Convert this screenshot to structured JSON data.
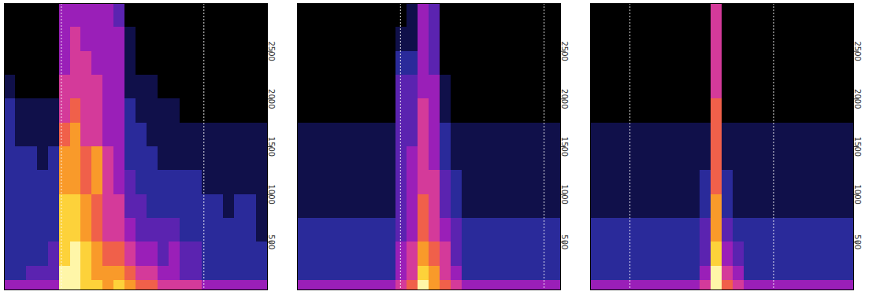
{
  "chart_data": [
    {
      "type": "heatmap",
      "tick_labels": "y",
      "xlim": [
        0,
        24
      ],
      "ylim": [
        0,
        3000
      ],
      "yticks": [
        500,
        1000,
        1500,
        2000,
        2500
      ],
      "x_bins": [
        0,
        1,
        2,
        3,
        4,
        5,
        6,
        7,
        8,
        9,
        10,
        11,
        12,
        13,
        14,
        15,
        16,
        17,
        18,
        19,
        20,
        21,
        22,
        23,
        24
      ],
      "y_bins": [
        0,
        100,
        250,
        500,
        750,
        1000,
        1250,
        1500,
        1750,
        2000,
        2250,
        2500,
        2750,
        3000
      ],
      "zlim": [
        0,
        9
      ],
      "vlines": [
        5.2,
        18.2
      ],
      "z": [
        [
          4,
          4,
          4,
          4,
          4,
          9,
          9,
          8,
          8,
          7,
          8,
          7,
          6,
          6,
          5,
          5,
          5,
          5,
          4,
          4,
          4,
          4,
          4,
          4
        ],
        [
          2,
          2,
          3,
          3,
          3,
          9,
          9,
          8,
          7,
          7,
          7,
          6,
          5,
          5,
          4,
          4,
          3,
          3,
          2,
          2,
          2,
          2,
          2,
          2
        ],
        [
          2,
          2,
          2,
          2,
          3,
          8,
          9,
          8,
          7,
          6,
          6,
          5,
          4,
          4,
          3,
          4,
          3,
          3,
          2,
          2,
          2,
          2,
          2,
          2
        ],
        [
          2,
          2,
          2,
          2,
          2,
          8,
          8,
          7,
          6,
          5,
          5,
          4,
          3,
          3,
          3,
          3,
          2,
          2,
          2,
          2,
          2,
          2,
          2,
          1
        ],
        [
          2,
          2,
          2,
          2,
          2,
          8,
          8,
          7,
          6,
          5,
          5,
          3,
          3,
          2,
          2,
          2,
          2,
          2,
          2,
          2,
          1,
          2,
          2,
          1
        ],
        [
          2,
          2,
          2,
          2,
          2,
          7,
          7,
          6,
          7,
          5,
          4,
          3,
          2,
          2,
          2,
          2,
          2,
          2,
          1,
          1,
          1,
          1,
          1,
          1
        ],
        [
          2,
          2,
          2,
          1,
          2,
          7,
          7,
          6,
          7,
          5,
          4,
          2,
          2,
          2,
          1,
          1,
          1,
          1,
          1,
          1,
          1,
          1,
          1,
          1
        ],
        [
          2,
          1,
          1,
          1,
          1,
          6,
          7,
          5,
          5,
          4,
          4,
          2,
          2,
          1,
          1,
          1,
          1,
          1,
          1,
          1,
          1,
          1,
          1,
          1
        ],
        [
          2,
          1,
          1,
          1,
          1,
          5,
          6,
          5,
          5,
          4,
          4,
          2,
          1,
          1,
          1,
          1,
          0,
          0,
          0,
          0,
          0,
          0,
          0,
          0
        ],
        [
          1,
          0,
          0,
          0,
          0,
          5,
          5,
          5,
          5,
          4,
          4,
          1,
          1,
          1,
          0,
          0,
          0,
          0,
          0,
          0,
          0,
          0,
          0,
          0
        ],
        [
          0,
          0,
          0,
          0,
          0,
          4,
          5,
          5,
          4,
          4,
          4,
          1,
          0,
          0,
          0,
          0,
          0,
          0,
          0,
          0,
          0,
          0,
          0,
          0
        ],
        [
          0,
          0,
          0,
          0,
          0,
          4,
          5,
          4,
          4,
          4,
          4,
          1,
          0,
          0,
          0,
          0,
          0,
          0,
          0,
          0,
          0,
          0,
          0,
          0
        ],
        [
          0,
          0,
          0,
          0,
          0,
          4,
          4,
          4,
          4,
          4,
          3,
          0,
          0,
          0,
          0,
          0,
          0,
          0,
          0,
          0,
          0,
          0,
          0,
          0
        ]
      ]
    },
    {
      "type": "heatmap",
      "tick_labels": "y",
      "xlim": [
        0,
        24
      ],
      "ylim": [
        0,
        3000
      ],
      "yticks": [
        500,
        1000,
        1500,
        2000,
        2500
      ],
      "x_bins": [
        0,
        1,
        2,
        3,
        4,
        5,
        6,
        7,
        8,
        9,
        10,
        11,
        12,
        13,
        14,
        15,
        16,
        17,
        18,
        19,
        20,
        21,
        22,
        23,
        24
      ],
      "y_bins": [
        0,
        100,
        250,
        500,
        750,
        1000,
        1250,
        1500,
        1750,
        2000,
        2250,
        2500,
        2750,
        3000
      ],
      "zlim": [
        0,
        9
      ],
      "vlines": [
        9.4,
        22.5
      ],
      "z": [
        [
          4,
          4,
          4,
          4,
          4,
          4,
          4,
          4,
          4,
          5,
          6,
          9,
          7,
          6,
          5,
          4,
          4,
          4,
          4,
          4,
          4,
          4,
          4,
          4
        ],
        [
          2,
          2,
          2,
          2,
          2,
          2,
          2,
          2,
          2,
          4,
          5,
          8,
          7,
          5,
          4,
          2,
          2,
          2,
          2,
          2,
          2,
          2,
          2,
          2
        ],
        [
          2,
          2,
          2,
          2,
          2,
          2,
          2,
          2,
          2,
          4,
          5,
          7,
          6,
          5,
          3,
          2,
          2,
          2,
          2,
          2,
          2,
          2,
          2,
          2
        ],
        [
          2,
          2,
          2,
          2,
          2,
          2,
          2,
          2,
          2,
          3,
          4,
          6,
          5,
          4,
          3,
          2,
          2,
          2,
          2,
          2,
          2,
          2,
          2,
          2
        ],
        [
          1,
          1,
          1,
          1,
          1,
          1,
          1,
          1,
          1,
          3,
          4,
          6,
          5,
          3,
          2,
          1,
          1,
          1,
          1,
          1,
          1,
          1,
          1,
          1
        ],
        [
          1,
          1,
          1,
          1,
          1,
          1,
          1,
          1,
          1,
          3,
          4,
          5,
          5,
          3,
          2,
          1,
          1,
          1,
          1,
          1,
          1,
          1,
          1,
          1
        ],
        [
          1,
          1,
          1,
          1,
          1,
          1,
          1,
          1,
          1,
          3,
          4,
          5,
          4,
          2,
          1,
          1,
          1,
          1,
          1,
          1,
          1,
          1,
          1,
          1
        ],
        [
          1,
          1,
          1,
          1,
          1,
          1,
          1,
          1,
          1,
          3,
          3,
          5,
          4,
          2,
          1,
          1,
          1,
          1,
          1,
          1,
          1,
          1,
          1,
          1
        ],
        [
          0,
          0,
          0,
          0,
          0,
          0,
          0,
          0,
          0,
          3,
          3,
          5,
          4,
          1,
          0,
          0,
          0,
          0,
          0,
          0,
          0,
          0,
          0,
          0
        ],
        [
          0,
          0,
          0,
          0,
          0,
          0,
          0,
          0,
          0,
          3,
          3,
          4,
          4,
          1,
          0,
          0,
          0,
          0,
          0,
          0,
          0,
          0,
          0,
          0
        ],
        [
          0,
          0,
          0,
          0,
          0,
          0,
          0,
          0,
          0,
          2,
          2,
          4,
          3,
          0,
          0,
          0,
          0,
          0,
          0,
          0,
          0,
          0,
          0,
          0
        ],
        [
          0,
          0,
          0,
          0,
          0,
          0,
          0,
          0,
          0,
          1,
          1,
          4,
          3,
          0,
          0,
          0,
          0,
          0,
          0,
          0,
          0,
          0,
          0,
          0
        ],
        [
          0,
          0,
          0,
          0,
          0,
          0,
          0,
          0,
          0,
          0,
          1,
          4,
          3,
          0,
          0,
          0,
          0,
          0,
          0,
          0,
          0,
          0,
          0,
          0
        ]
      ]
    },
    {
      "type": "heatmap",
      "tick_labels": "y",
      "xlim": [
        0,
        24
      ],
      "ylim": [
        0,
        3000
      ],
      "yticks": [
        500,
        1000,
        1500,
        2000,
        2500
      ],
      "x_bins": [
        0,
        1,
        2,
        3,
        4,
        5,
        6,
        7,
        8,
        9,
        10,
        11,
        12,
        13,
        14,
        15,
        16,
        17,
        18,
        19,
        20,
        21,
        22,
        23,
        24
      ],
      "y_bins": [
        0,
        100,
        250,
        500,
        750,
        1000,
        1250,
        1500,
        1750,
        2000,
        2250,
        2500,
        2750,
        3000
      ],
      "zlim": [
        0,
        9
      ],
      "vlines": [
        3.6,
        16.7
      ],
      "z": [
        [
          4,
          4,
          4,
          4,
          4,
          4,
          4,
          4,
          4,
          4,
          5,
          9,
          6,
          5,
          4,
          4,
          4,
          4,
          4,
          4,
          4,
          4,
          4,
          4
        ],
        [
          2,
          2,
          2,
          2,
          2,
          2,
          2,
          2,
          2,
          2,
          4,
          9,
          5,
          4,
          2,
          2,
          2,
          2,
          2,
          2,
          2,
          2,
          2,
          2
        ],
        [
          2,
          2,
          2,
          2,
          2,
          2,
          2,
          2,
          2,
          2,
          3,
          8,
          4,
          3,
          2,
          2,
          2,
          2,
          2,
          2,
          2,
          2,
          2,
          2
        ],
        [
          2,
          2,
          2,
          2,
          2,
          2,
          2,
          2,
          2,
          2,
          3,
          7,
          3,
          2,
          2,
          2,
          2,
          2,
          2,
          2,
          2,
          2,
          2,
          2
        ],
        [
          1,
          1,
          1,
          1,
          1,
          1,
          1,
          1,
          1,
          1,
          2,
          7,
          2,
          1,
          1,
          1,
          1,
          1,
          1,
          1,
          1,
          1,
          1,
          1
        ],
        [
          1,
          1,
          1,
          1,
          1,
          1,
          1,
          1,
          1,
          1,
          2,
          6,
          2,
          1,
          1,
          1,
          1,
          1,
          1,
          1,
          1,
          1,
          1,
          1
        ],
        [
          1,
          1,
          1,
          1,
          1,
          1,
          1,
          1,
          1,
          1,
          1,
          6,
          1,
          1,
          1,
          1,
          1,
          1,
          1,
          1,
          1,
          1,
          1,
          1
        ],
        [
          1,
          1,
          1,
          1,
          1,
          1,
          1,
          1,
          1,
          1,
          1,
          6,
          1,
          1,
          1,
          1,
          1,
          1,
          1,
          1,
          1,
          1,
          1,
          1
        ],
        [
          0,
          0,
          0,
          0,
          0,
          0,
          0,
          0,
          0,
          0,
          0,
          6,
          0,
          0,
          0,
          0,
          0,
          0,
          0,
          0,
          0,
          0,
          0,
          0
        ],
        [
          0,
          0,
          0,
          0,
          0,
          0,
          0,
          0,
          0,
          0,
          0,
          5,
          0,
          0,
          0,
          0,
          0,
          0,
          0,
          0,
          0,
          0,
          0,
          0
        ],
        [
          0,
          0,
          0,
          0,
          0,
          0,
          0,
          0,
          0,
          0,
          0,
          5,
          0,
          0,
          0,
          0,
          0,
          0,
          0,
          0,
          0,
          0,
          0,
          0
        ],
        [
          0,
          0,
          0,
          0,
          0,
          0,
          0,
          0,
          0,
          0,
          0,
          5,
          0,
          0,
          0,
          0,
          0,
          0,
          0,
          0,
          0,
          0,
          0,
          0
        ],
        [
          0,
          0,
          0,
          0,
          0,
          0,
          0,
          0,
          0,
          0,
          0,
          5,
          0,
          0,
          0,
          0,
          0,
          0,
          0,
          0,
          0,
          0,
          0,
          0
        ]
      ]
    }
  ]
}
